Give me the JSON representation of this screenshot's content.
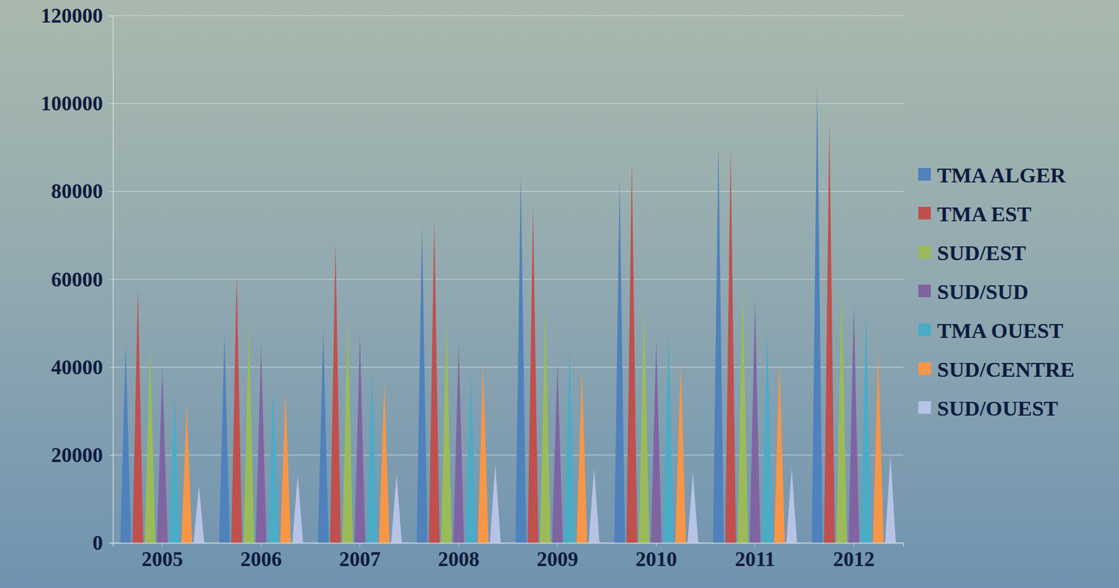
{
  "chart_data": {
    "type": "bar",
    "categories": [
      "2005",
      "2006",
      "2007",
      "2008",
      "2009",
      "2010",
      "2011",
      "2012"
    ],
    "series": [
      {
        "name": "TMA ALGER",
        "color": "#4f81bd",
        "values": [
          45000,
          47500,
          48500,
          72500,
          84000,
          82500,
          90500,
          104000
        ]
      },
      {
        "name": "TMA EST",
        "color": "#c0504d",
        "values": [
          58000,
          61000,
          68000,
          73500,
          76500,
          87000,
          89500,
          95500
        ]
      },
      {
        "name": "SUD/EST",
        "color": "#9bbb59",
        "values": [
          45000,
          50000,
          51000,
          51000,
          53500,
          54000,
          59000,
          59000
        ]
      },
      {
        "name": "SUD/SUD",
        "color": "#8064a2",
        "values": [
          40000,
          45000,
          47500,
          45000,
          41000,
          46000,
          55000,
          54000
        ]
      },
      {
        "name": "TMA OUEST",
        "color": "#4bacc6",
        "values": [
          34000,
          35500,
          39000,
          39000,
          44500,
          47500,
          47500,
          52500
        ]
      },
      {
        "name": "SUD/CENTRE",
        "color": "#f79646",
        "values": [
          31500,
          34500,
          36500,
          41000,
          39500,
          41000,
          41000,
          43500
        ]
      },
      {
        "name": "SUD/OUEST",
        "color": "#b7c3e6",
        "values": [
          13000,
          15500,
          15500,
          18000,
          17000,
          16000,
          17000,
          20000
        ]
      }
    ],
    "ylim": [
      0,
      120000
    ],
    "yticks": [
      0,
      20000,
      40000,
      60000,
      80000,
      100000,
      120000
    ],
    "grid": true,
    "legend": "right"
  }
}
